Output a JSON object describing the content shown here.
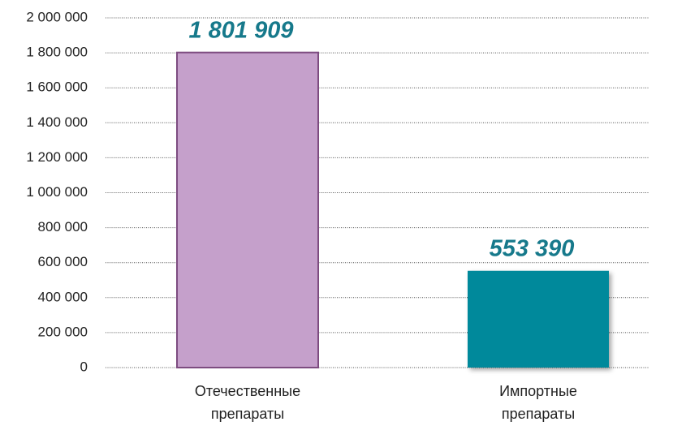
{
  "chart_data": {
    "type": "bar",
    "categories": [
      "Отечественные препараты",
      "Импортные препараты"
    ],
    "values": [
      1801909,
      553390
    ],
    "value_labels": [
      "1 801 909",
      "553 390"
    ],
    "colors": [
      "#c5a0cb",
      "#00899b"
    ],
    "ylim": [
      0,
      2000000
    ],
    "yticks": [
      0,
      {
        "value": 200000,
        "label": "200 000"
      },
      {
        "value": 400000,
        "label": "400 000"
      },
      {
        "value": 600000,
        "label": "600 000"
      },
      {
        "value": 800000,
        "label": "800 000"
      },
      {
        "value": 1000000,
        "label": "1 000 000"
      },
      {
        "value": 1200000,
        "label": "1 200 000"
      },
      {
        "value": 1400000,
        "label": "1 400 000"
      },
      {
        "value": 1600000,
        "label": "1 600 000"
      },
      {
        "value": 1800000,
        "label": "1 800 000"
      },
      {
        "value": 2000000,
        "label": "2 000 000"
      }
    ],
    "grid": true
  }
}
